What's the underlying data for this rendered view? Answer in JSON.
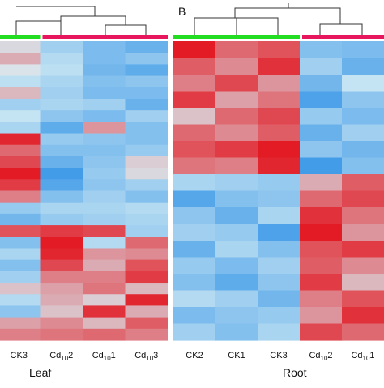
{
  "panel_b_letter": "B",
  "colors": {
    "control_bar": "#22dd22",
    "treatment_bar": "#e8175d",
    "low": "#1e88e5",
    "mid": "#d8eef4",
    "high": "#e3101a"
  },
  "chart_data": [
    {
      "type": "heatmap",
      "title": "Leaf",
      "columns": [
        {
          "base": "CK3",
          "sub": "",
          "tail": ""
        },
        {
          "base": "Cd",
          "sub": "10",
          "tail": "2"
        },
        {
          "base": "Cd",
          "sub": "10",
          "tail": "1"
        },
        {
          "base": "Cd",
          "sub": "10",
          "tail": "3"
        }
      ],
      "groups": [
        "control",
        "treatment",
        "treatment",
        "treatment"
      ],
      "value_range": [
        -2,
        2
      ],
      "values": [
        [
          0.2,
          -0.6,
          -1.0,
          -1.2
        ],
        [
          0.6,
          -0.4,
          -1.0,
          -0.8
        ],
        [
          0.1,
          -0.3,
          -1.1,
          -1.3
        ],
        [
          -0.3,
          -0.5,
          -0.9,
          -0.8
        ],
        [
          0.5,
          -0.6,
          -1.0,
          -1.0
        ],
        [
          -0.6,
          -0.5,
          -0.6,
          -1.2
        ],
        [
          -0.2,
          -0.8,
          -1.0,
          -0.6
        ],
        [
          -0.5,
          -1.3,
          0.8,
          -0.9
        ],
        [
          1.8,
          -0.7,
          -0.8,
          -0.9
        ],
        [
          1.2,
          -0.9,
          -0.9,
          -0.7
        ],
        [
          1.5,
          -1.2,
          -0.8,
          0.3
        ],
        [
          1.9,
          -1.6,
          -0.7,
          0.2
        ],
        [
          1.6,
          -1.4,
          -0.8,
          -0.6
        ],
        [
          1.0,
          -0.9,
          -0.6,
          -0.9
        ],
        [
          -0.7,
          -0.5,
          -0.5,
          -0.4
        ],
        [
          -1.1,
          -0.7,
          -0.6,
          -0.5
        ],
        [
          1.4,
          1.6,
          1.5,
          -0.6
        ],
        [
          -0.9,
          1.9,
          -0.4,
          1.2
        ],
        [
          -0.5,
          1.8,
          0.8,
          0.9
        ],
        [
          -0.9,
          1.5,
          0.6,
          1.4
        ],
        [
          -0.6,
          1.0,
          1.0,
          1.6
        ],
        [
          0.4,
          0.7,
          1.1,
          0.5
        ],
        [
          -0.4,
          0.6,
          0.3,
          1.8
        ],
        [
          -0.8,
          0.4,
          1.7,
          0.6
        ],
        [
          0.7,
          0.9,
          0.5,
          1.3
        ],
        [
          1.0,
          1.1,
          1.2,
          1.0
        ]
      ]
    },
    {
      "type": "heatmap",
      "title": "Root",
      "columns": [
        {
          "base": "CK2",
          "sub": "",
          "tail": ""
        },
        {
          "base": "CK1",
          "sub": "",
          "tail": ""
        },
        {
          "base": "CK3",
          "sub": "",
          "tail": ""
        },
        {
          "base": "Cd",
          "sub": "10",
          "tail": "2"
        },
        {
          "base": "Cd",
          "sub": "10",
          "tail": "1"
        }
      ],
      "groups": [
        "control",
        "control",
        "control",
        "treatment",
        "treatment"
      ],
      "value_range": [
        -2,
        2
      ],
      "values": [
        [
          1.9,
          1.2,
          1.4,
          -0.9,
          -1.0
        ],
        [
          1.3,
          0.9,
          1.7,
          -0.6,
          -1.2
        ],
        [
          1.0,
          1.5,
          0.8,
          -1.1,
          -0.2
        ],
        [
          1.6,
          0.7,
          1.1,
          -1.5,
          -0.8
        ],
        [
          0.4,
          1.2,
          1.5,
          -0.7,
          -1.0
        ],
        [
          1.2,
          0.9,
          1.3,
          -1.2,
          -0.6
        ],
        [
          1.4,
          1.6,
          1.9,
          -0.8,
          -1.1
        ],
        [
          1.1,
          1.0,
          1.8,
          -1.6,
          -0.9
        ],
        [
          -0.5,
          -0.6,
          -0.7,
          0.6,
          1.3
        ],
        [
          -1.4,
          -0.9,
          -0.8,
          1.2,
          1.5
        ],
        [
          -0.8,
          -1.2,
          -0.5,
          1.7,
          1.1
        ],
        [
          -0.6,
          -0.7,
          -1.5,
          1.9,
          0.8
        ],
        [
          -1.2,
          -0.5,
          -0.9,
          1.4,
          1.6
        ],
        [
          -0.7,
          -1.0,
          -0.6,
          1.3,
          0.9
        ],
        [
          -0.9,
          -1.3,
          -0.8,
          1.6,
          0.5
        ],
        [
          -0.4,
          -0.6,
          -1.1,
          1.0,
          1.4
        ],
        [
          -1.0,
          -0.8,
          -0.7,
          0.8,
          1.7
        ],
        [
          -0.6,
          -0.9,
          -0.5,
          1.5,
          1.2
        ]
      ]
    }
  ]
}
